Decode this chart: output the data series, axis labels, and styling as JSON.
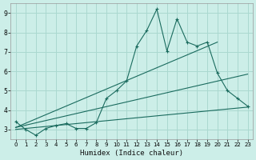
{
  "xlabel": "Humidex (Indice chaleur)",
  "background_color": "#cceee8",
  "grid_color": "#aad8d0",
  "line_color": "#1a6b5e",
  "xlim": [
    -0.5,
    23.5
  ],
  "ylim": [
    2.5,
    9.5
  ],
  "xticks": [
    0,
    1,
    2,
    3,
    4,
    5,
    6,
    7,
    8,
    9,
    10,
    11,
    12,
    13,
    14,
    15,
    16,
    17,
    18,
    19,
    20,
    21,
    22,
    23
  ],
  "yticks": [
    3,
    4,
    5,
    6,
    7,
    8,
    9
  ],
  "series1_x": [
    0,
    1,
    2,
    3,
    4,
    5,
    6,
    7,
    8,
    9,
    10,
    11,
    12,
    13,
    14,
    15,
    16,
    17,
    18,
    19,
    20,
    21,
    22,
    23
  ],
  "series1_y": [
    3.4,
    3.0,
    2.7,
    3.05,
    3.2,
    3.3,
    3.05,
    3.05,
    3.35,
    4.6,
    5.0,
    5.5,
    7.3,
    8.1,
    9.2,
    7.05,
    8.7,
    7.5,
    7.3,
    7.5,
    5.9,
    5.0,
    4.6,
    4.2
  ],
  "series2_x": [
    0,
    20
  ],
  "series2_y": [
    3.1,
    7.5
  ],
  "series3_x": [
    0,
    23
  ],
  "series3_y": [
    3.1,
    5.85
  ],
  "series4_x": [
    0,
    23
  ],
  "series4_y": [
    3.0,
    4.15
  ],
  "marker": "+"
}
